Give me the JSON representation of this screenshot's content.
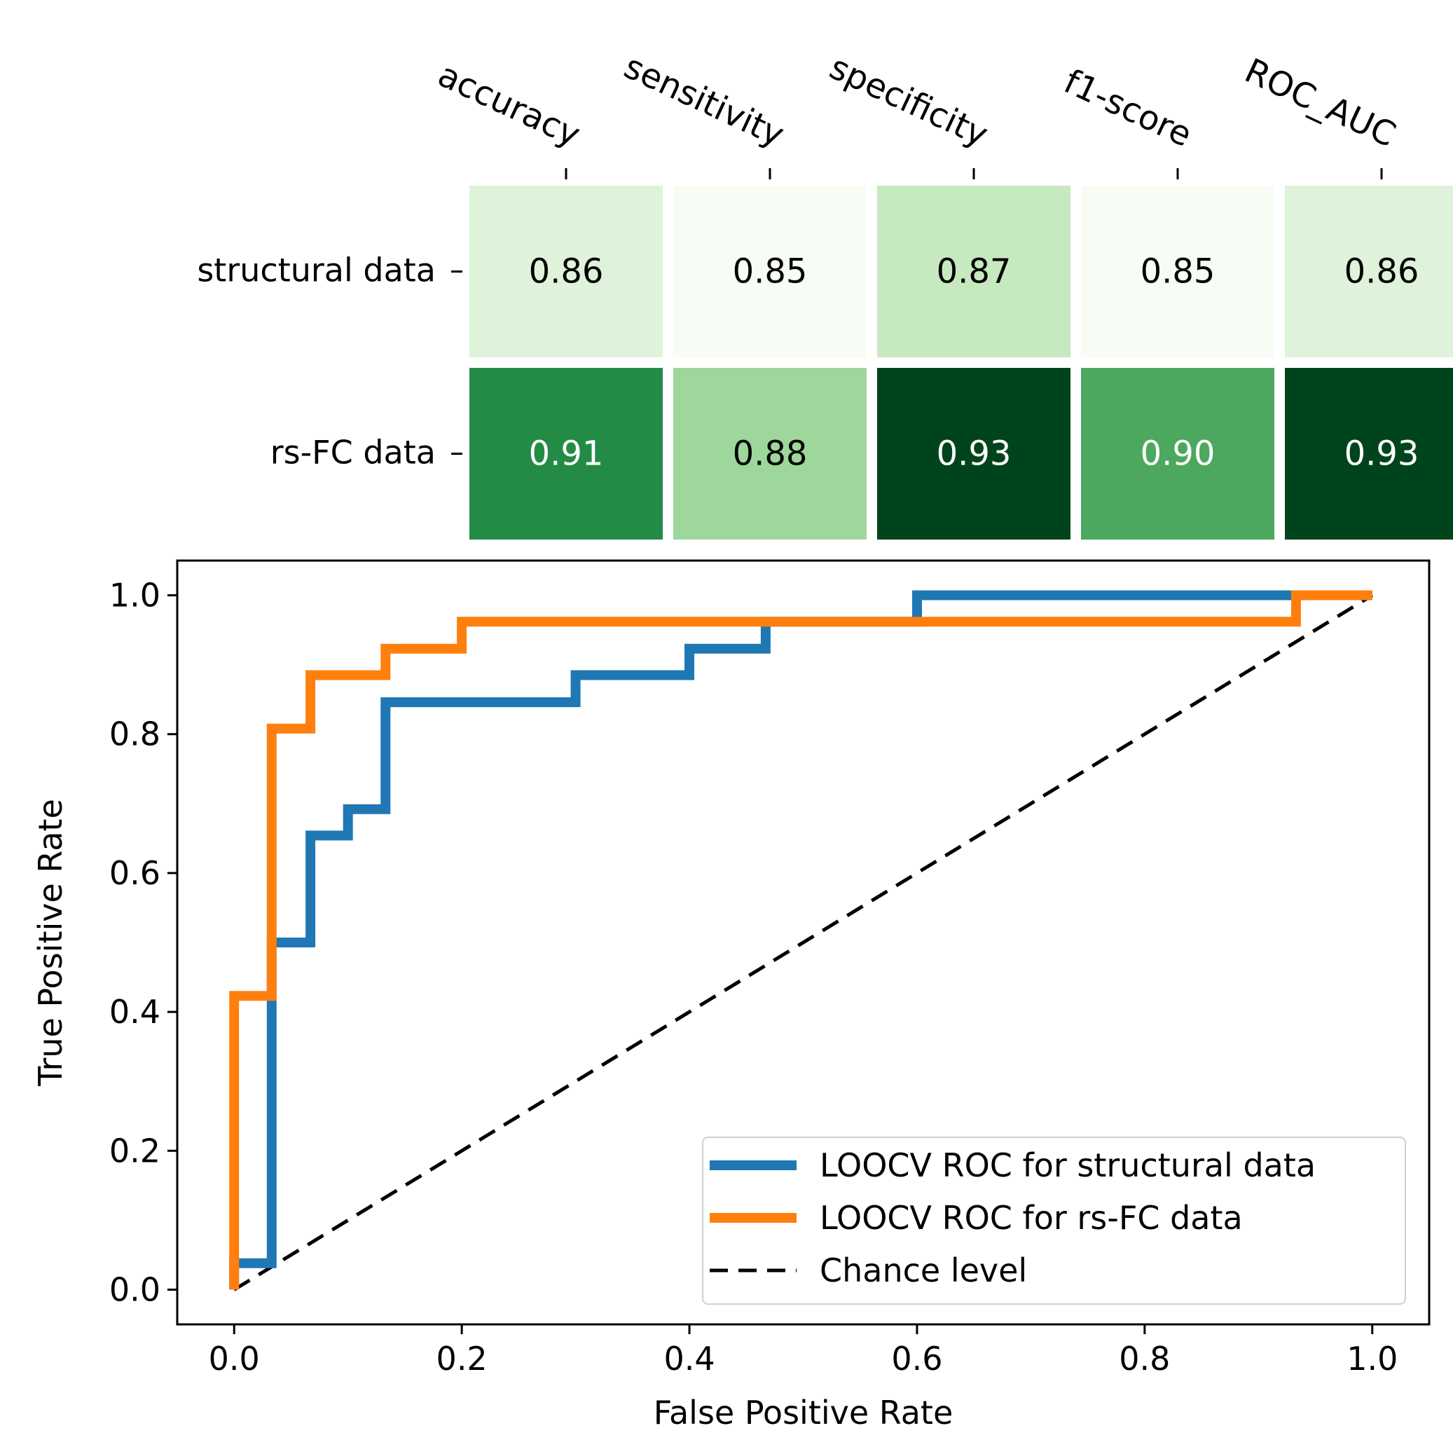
{
  "chart_data": [
    {
      "type": "heatmap",
      "columns": [
        "accuracy",
        "sensitivity",
        "specificity",
        "f1-score",
        "ROC_AUC"
      ],
      "rows": [
        "structural data",
        "rs-FC data"
      ],
      "values": [
        [
          0.86,
          0.85,
          0.87,
          0.85,
          0.86
        ],
        [
          0.91,
          0.88,
          0.93,
          0.9,
          0.93
        ]
      ],
      "value_labels": [
        [
          "0.86",
          "0.85",
          "0.87",
          "0.85",
          "0.86"
        ],
        [
          "0.91",
          "0.88",
          "0.93",
          "0.90",
          "0.93"
        ]
      ],
      "colormap": "Greens",
      "vmin": 0.85,
      "vmax": 0.93
    },
    {
      "type": "line",
      "xlabel": "False Positive Rate",
      "ylabel": "True Positive Rate",
      "xlim": [
        -0.05,
        1.05
      ],
      "ylim": [
        -0.05,
        1.05
      ],
      "xticks": [
        "0.0",
        "0.2",
        "0.4",
        "0.6",
        "0.8",
        "1.0"
      ],
      "yticks": [
        "0.0",
        "0.2",
        "0.4",
        "0.6",
        "0.8",
        "1.0"
      ],
      "legend_position": "bottom-right",
      "series": [
        {
          "name": "LOOCV ROC for structural data",
          "color": "#1f77b4",
          "style": "solid",
          "points": [
            [
              0,
              0
            ],
            [
              0,
              0.038
            ],
            [
              0.033,
              0.038
            ],
            [
              0.033,
              0.5
            ],
            [
              0.067,
              0.5
            ],
            [
              0.067,
              0.654
            ],
            [
              0.1,
              0.654
            ],
            [
              0.1,
              0.692
            ],
            [
              0.133,
              0.692
            ],
            [
              0.133,
              0.846
            ],
            [
              0.3,
              0.846
            ],
            [
              0.3,
              0.885
            ],
            [
              0.4,
              0.885
            ],
            [
              0.4,
              0.923
            ],
            [
              0.467,
              0.923
            ],
            [
              0.467,
              0.962
            ],
            [
              0.6,
              0.962
            ],
            [
              0.6,
              1.0
            ],
            [
              1.0,
              1.0
            ]
          ]
        },
        {
          "name": "LOOCV ROC for rs-FC data",
          "color": "#ff7f0e",
          "style": "solid",
          "points": [
            [
              0,
              0
            ],
            [
              0,
              0.423
            ],
            [
              0.033,
              0.423
            ],
            [
              0.033,
              0.808
            ],
            [
              0.067,
              0.808
            ],
            [
              0.067,
              0.885
            ],
            [
              0.133,
              0.885
            ],
            [
              0.133,
              0.923
            ],
            [
              0.2,
              0.923
            ],
            [
              0.2,
              0.962
            ],
            [
              0.933,
              0.962
            ],
            [
              0.933,
              1.0
            ],
            [
              1.0,
              1.0
            ]
          ]
        },
        {
          "name": "Chance level",
          "color": "#000000",
          "style": "dashed",
          "points": [
            [
              0,
              0
            ],
            [
              1,
              1
            ]
          ]
        }
      ]
    }
  ]
}
